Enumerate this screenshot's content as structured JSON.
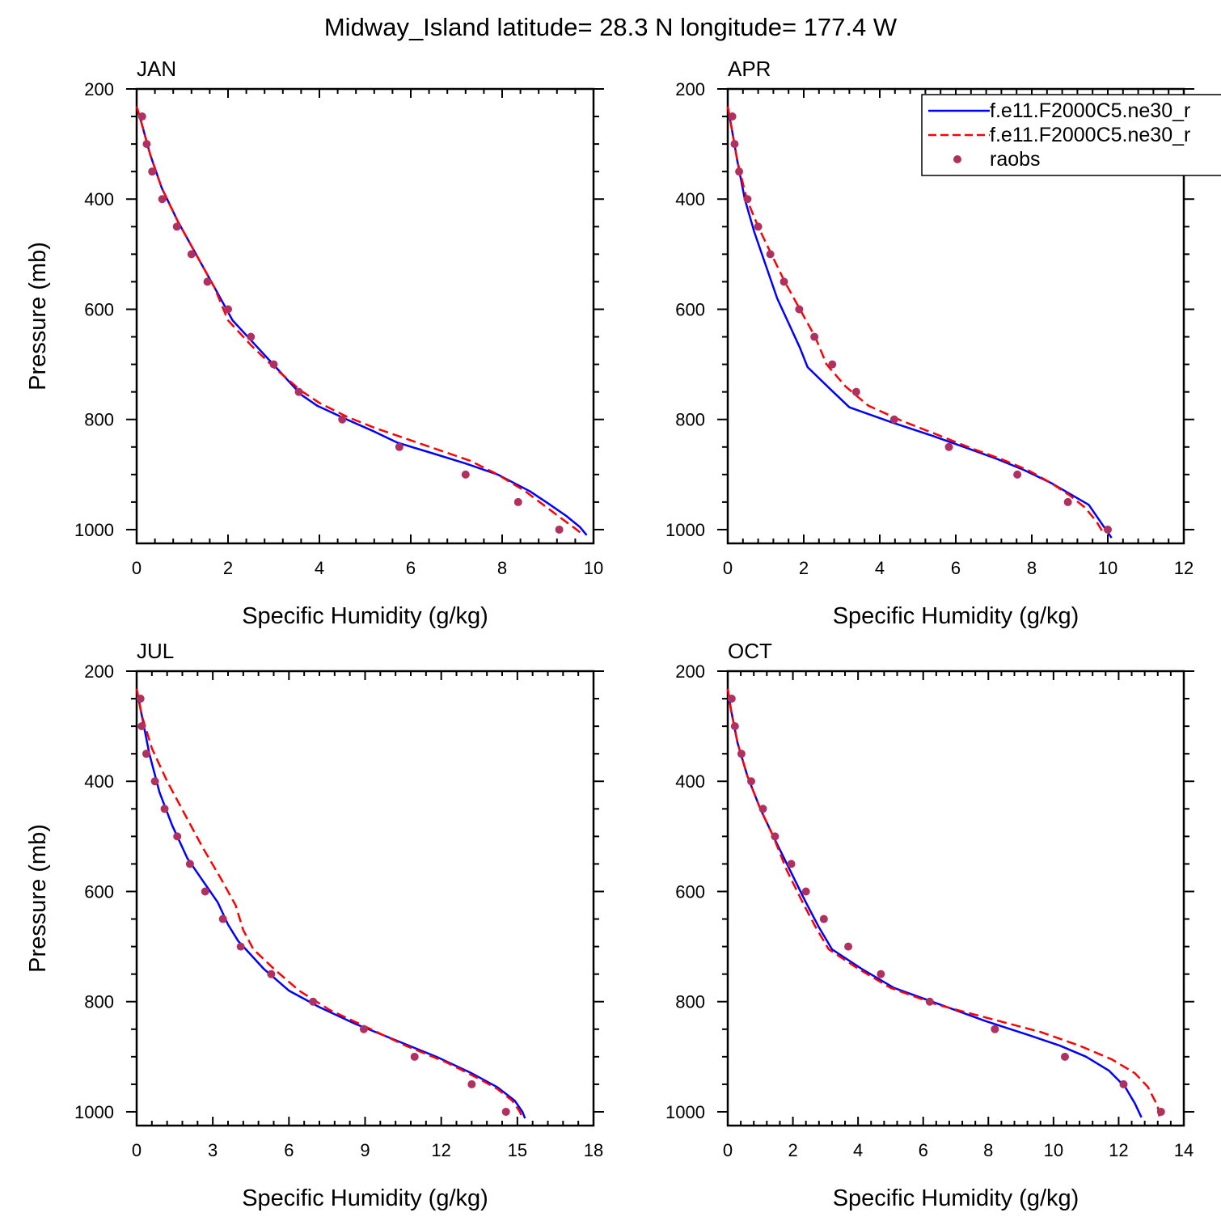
{
  "title": "Midway_Island  latitude= 28.3 N longitude= 177.4 W",
  "legend": {
    "entries": [
      {
        "label": "f.e11.F2000C5.ne30_r",
        "style": "solid",
        "color": "#0000ff"
      },
      {
        "label": "f.e11.F2000C5.ne30_r",
        "style": "dashed",
        "color": "#ff0000"
      },
      {
        "label": "raobs",
        "style": "marker",
        "color": "#b03060"
      }
    ]
  },
  "colors": {
    "model_a": "#0000ff",
    "model_b": "#ff0000",
    "raobs": "#b03060"
  },
  "chart_data": [
    {
      "type": "line",
      "panel_label": "JAN",
      "xlabel": "Specific Humidity (g/kg)",
      "ylabel": "Pressure (mb)",
      "xlim": [
        0,
        10
      ],
      "ylim": [
        1025,
        200
      ],
      "y_reversed": true,
      "xticks": [
        0,
        2,
        4,
        6,
        8,
        10
      ],
      "xtick_labels": [
        "0",
        "2",
        "4",
        "6",
        "8",
        "10"
      ],
      "yticks": [
        200,
        400,
        600,
        800,
        1000
      ],
      "ytick_labels": [
        "200",
        "400",
        "600",
        "800",
        "1000"
      ],
      "series": [
        {
          "style": "solid",
          "color": "#0000ff",
          "x": [
            0.0,
            0.1,
            0.3,
            0.55,
            0.9,
            1.3,
            1.7,
            2.1,
            2.6,
            3.1,
            3.6,
            3.95,
            4.6,
            5.2,
            5.7,
            6.5,
            7.2,
            7.9,
            8.6,
            9.0,
            9.4,
            9.7,
            9.85
          ],
          "y": [
            232,
            260,
            320,
            380,
            440,
            500,
            560,
            620,
            665,
            710,
            755,
            775,
            800,
            822,
            842,
            862,
            880,
            900,
            930,
            952,
            975,
            995,
            1010
          ]
        },
        {
          "style": "dashed",
          "color": "#ff0000",
          "x": [
            0.0,
            0.1,
            0.3,
            0.55,
            0.9,
            1.3,
            1.7,
            2.0,
            2.5,
            3.0,
            3.6,
            4.0,
            4.6,
            5.2,
            5.9,
            6.6,
            7.3,
            7.9,
            8.5,
            8.9,
            9.3,
            9.6,
            9.75
          ],
          "y": [
            232,
            260,
            320,
            380,
            440,
            500,
            560,
            620,
            665,
            705,
            748,
            770,
            795,
            815,
            835,
            855,
            875,
            900,
            930,
            955,
            980,
            998,
            1008
          ]
        }
      ],
      "points": {
        "style": "marker",
        "color": "#b03060",
        "x": [
          0.12,
          0.22,
          0.34,
          0.56,
          0.88,
          1.2,
          1.55,
          2.0,
          2.5,
          3.0,
          3.55,
          4.5,
          5.75,
          7.2,
          8.35,
          9.25
        ],
        "y": [
          250,
          300,
          350,
          400,
          450,
          500,
          550,
          600,
          650,
          700,
          750,
          800,
          850,
          900,
          950,
          1000
        ]
      }
    },
    {
      "type": "line",
      "panel_label": "APR",
      "xlabel": "Specific Humidity (g/kg)",
      "ylabel": "",
      "xlim": [
        0,
        12
      ],
      "ylim": [
        1025,
        200
      ],
      "y_reversed": true,
      "xticks": [
        0,
        2,
        4,
        6,
        8,
        10,
        12
      ],
      "xtick_labels": [
        "0",
        "2",
        "4",
        "6",
        "8",
        "10",
        "12"
      ],
      "yticks": [
        200,
        400,
        600,
        800,
        1000
      ],
      "ytick_labels": [
        "200",
        "400",
        "600",
        "800",
        "1000"
      ],
      "series": [
        {
          "style": "solid",
          "color": "#0000ff",
          "x": [
            0.0,
            0.1,
            0.25,
            0.45,
            0.7,
            1.0,
            1.3,
            1.6,
            1.9,
            2.1,
            2.7,
            3.2,
            4.3,
            5.4,
            6.3,
            7.1,
            7.8,
            8.5,
            9.0,
            9.5,
            9.8,
            10.1
          ],
          "y": [
            232,
            270,
            330,
            400,
            460,
            520,
            580,
            625,
            670,
            705,
            745,
            778,
            805,
            830,
            852,
            872,
            892,
            915,
            935,
            955,
            985,
            1015
          ]
        },
        {
          "style": "dashed",
          "color": "#ff0000",
          "x": [
            0.0,
            0.1,
            0.25,
            0.5,
            0.8,
            1.15,
            1.5,
            1.9,
            2.3,
            2.6,
            3.1,
            3.7,
            4.6,
            5.6,
            6.4,
            7.2,
            7.9,
            8.5,
            9.0,
            9.4,
            9.7,
            9.9
          ],
          "y": [
            232,
            270,
            330,
            400,
            450,
            500,
            550,
            600,
            650,
            700,
            740,
            775,
            803,
            830,
            852,
            872,
            892,
            915,
            938,
            960,
            985,
            1008
          ]
        }
      ],
      "points": {
        "style": "marker",
        "color": "#b03060",
        "x": [
          0.12,
          0.18,
          0.3,
          0.52,
          0.8,
          1.12,
          1.48,
          1.88,
          2.28,
          2.75,
          3.38,
          4.38,
          5.82,
          7.62,
          8.95,
          10.0
        ],
        "y": [
          250,
          300,
          350,
          400,
          450,
          500,
          550,
          600,
          650,
          700,
          750,
          800,
          850,
          900,
          950,
          1000
        ]
      }
    },
    {
      "type": "line",
      "panel_label": "JUL",
      "xlabel": "Specific Humidity (g/kg)",
      "ylabel": "Pressure (mb)",
      "xlim": [
        0,
        18
      ],
      "ylim": [
        1025,
        200
      ],
      "y_reversed": true,
      "xticks": [
        0,
        3,
        6,
        9,
        12,
        15,
        18
      ],
      "xtick_labels": [
        "0",
        "3",
        "6",
        "9",
        "12",
        "15",
        "18"
      ],
      "yticks": [
        200,
        400,
        600,
        800,
        1000
      ],
      "ytick_labels": [
        "200",
        "400",
        "600",
        "800",
        "1000"
      ],
      "series": [
        {
          "style": "solid",
          "color": "#0000ff",
          "x": [
            0.0,
            0.2,
            0.5,
            0.9,
            1.4,
            2.0,
            2.6,
            3.2,
            3.6,
            4.0,
            4.3,
            5.0,
            6.0,
            7.2,
            8.6,
            10.2,
            11.8,
            13.2,
            14.2,
            14.9,
            15.2,
            15.3
          ],
          "y": [
            232,
            280,
            350,
            420,
            480,
            540,
            580,
            620,
            660,
            690,
            705,
            740,
            780,
            810,
            840,
            870,
            900,
            930,
            955,
            980,
            1000,
            1012
          ]
        },
        {
          "style": "dashed",
          "color": "#ff0000",
          "x": [
            0.0,
            0.2,
            0.6,
            1.2,
            1.9,
            2.6,
            3.3,
            3.9,
            4.2,
            4.6,
            5.4,
            6.4,
            7.6,
            9.0,
            10.6,
            12.2,
            13.4,
            14.2,
            14.8,
            15.1,
            15.2
          ],
          "y": [
            232,
            280,
            340,
            400,
            460,
            520,
            575,
            625,
            670,
            705,
            740,
            780,
            815,
            845,
            880,
            910,
            938,
            958,
            980,
            1000,
            1012
          ]
        }
      ],
      "points": {
        "style": "marker",
        "color": "#b03060",
        "x": [
          0.15,
          0.2,
          0.38,
          0.72,
          1.1,
          1.6,
          2.1,
          2.7,
          3.4,
          4.1,
          5.3,
          6.95,
          8.95,
          10.95,
          13.2,
          14.55
        ],
        "y": [
          250,
          300,
          350,
          400,
          450,
          500,
          550,
          600,
          650,
          700,
          750,
          800,
          850,
          900,
          950,
          1000
        ]
      }
    },
    {
      "type": "line",
      "panel_label": "OCT",
      "xlabel": "Specific Humidity (g/kg)",
      "ylabel": "",
      "xlim": [
        0,
        14
      ],
      "ylim": [
        1025,
        200
      ],
      "y_reversed": true,
      "xticks": [
        0,
        2,
        4,
        6,
        8,
        10,
        12,
        14
      ],
      "xtick_labels": [
        "0",
        "2",
        "4",
        "6",
        "8",
        "10",
        "12",
        "14"
      ],
      "yticks": [
        200,
        400,
        600,
        800,
        1000
      ],
      "ytick_labels": [
        "200",
        "400",
        "600",
        "800",
        "1000"
      ],
      "series": [
        {
          "style": "solid",
          "color": "#0000ff",
          "x": [
            0.0,
            0.1,
            0.3,
            0.6,
            1.0,
            1.4,
            1.9,
            2.4,
            2.8,
            3.2,
            4.1,
            5.1,
            6.5,
            7.9,
            9.2,
            10.2,
            11.0,
            11.7,
            12.2,
            12.5,
            12.7
          ],
          "y": [
            232,
            270,
            330,
            390,
            450,
            500,
            560,
            620,
            665,
            705,
            740,
            775,
            805,
            835,
            860,
            880,
            900,
            925,
            955,
            985,
            1010
          ]
        },
        {
          "style": "dashed",
          "color": "#ff0000",
          "x": [
            0.0,
            0.1,
            0.3,
            0.6,
            1.0,
            1.4,
            1.8,
            2.3,
            2.7,
            3.1,
            4.0,
            5.0,
            6.4,
            8.0,
            9.6,
            10.8,
            11.8,
            12.5,
            12.9,
            13.2,
            13.25
          ],
          "y": [
            232,
            270,
            330,
            390,
            450,
            500,
            560,
            620,
            665,
            705,
            740,
            775,
            805,
            830,
            855,
            880,
            905,
            930,
            955,
            990,
            1010
          ]
        }
      ],
      "points": {
        "style": "marker",
        "color": "#b03060",
        "x": [
          0.12,
          0.22,
          0.42,
          0.72,
          1.08,
          1.45,
          1.95,
          2.4,
          2.95,
          3.7,
          4.7,
          6.2,
          8.2,
          10.35,
          12.15,
          13.3
        ],
        "y": [
          250,
          300,
          350,
          400,
          450,
          500,
          550,
          600,
          650,
          700,
          750,
          800,
          850,
          900,
          950,
          1000
        ]
      }
    }
  ]
}
